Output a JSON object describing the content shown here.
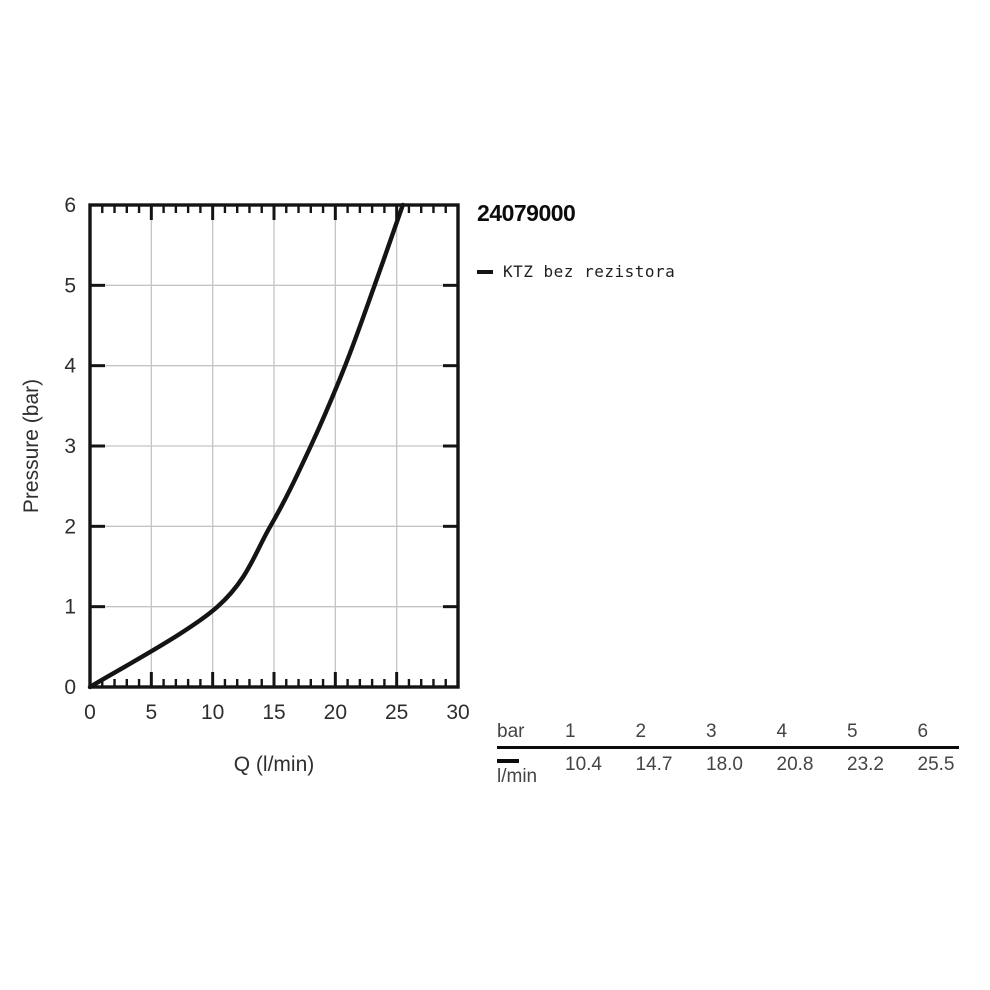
{
  "header": {
    "product_number": "24079000"
  },
  "legend": {
    "label": "KTZ bez rezistora",
    "marker_color": "#141414"
  },
  "chart_data": {
    "type": "line",
    "title": "24079000",
    "xlabel": "Q (l/min)",
    "ylabel": "Pressure (bar)",
    "xlim": [
      0,
      30
    ],
    "ylim": [
      0,
      6
    ],
    "x_major_ticks": [
      0,
      5,
      10,
      15,
      20,
      25,
      30
    ],
    "x_minor_step": 1,
    "y_major_ticks": [
      0,
      1,
      2,
      3,
      4,
      5,
      6
    ],
    "grid": true,
    "legend_position": "right-top",
    "axis_color": "#141414",
    "grid_color": "#c2c5c5",
    "text_color": "#2e2e2e",
    "series": [
      {
        "name": "KTZ bez rezistora",
        "color": "#141414",
        "points": [
          [
            0,
            0
          ],
          [
            10.4,
            1
          ],
          [
            14.7,
            2
          ],
          [
            18.0,
            3
          ],
          [
            20.8,
            4
          ],
          [
            23.2,
            5
          ],
          [
            25.5,
            6
          ]
        ]
      }
    ]
  },
  "table": {
    "row1_label": "bar",
    "row2_label": "l/min",
    "pressures_bar": [
      "1",
      "2",
      "3",
      "4",
      "5",
      "6"
    ],
    "flows_lmin": [
      "10.4",
      "14.7",
      "18.0",
      "20.8",
      "23.2",
      "25.5"
    ]
  }
}
